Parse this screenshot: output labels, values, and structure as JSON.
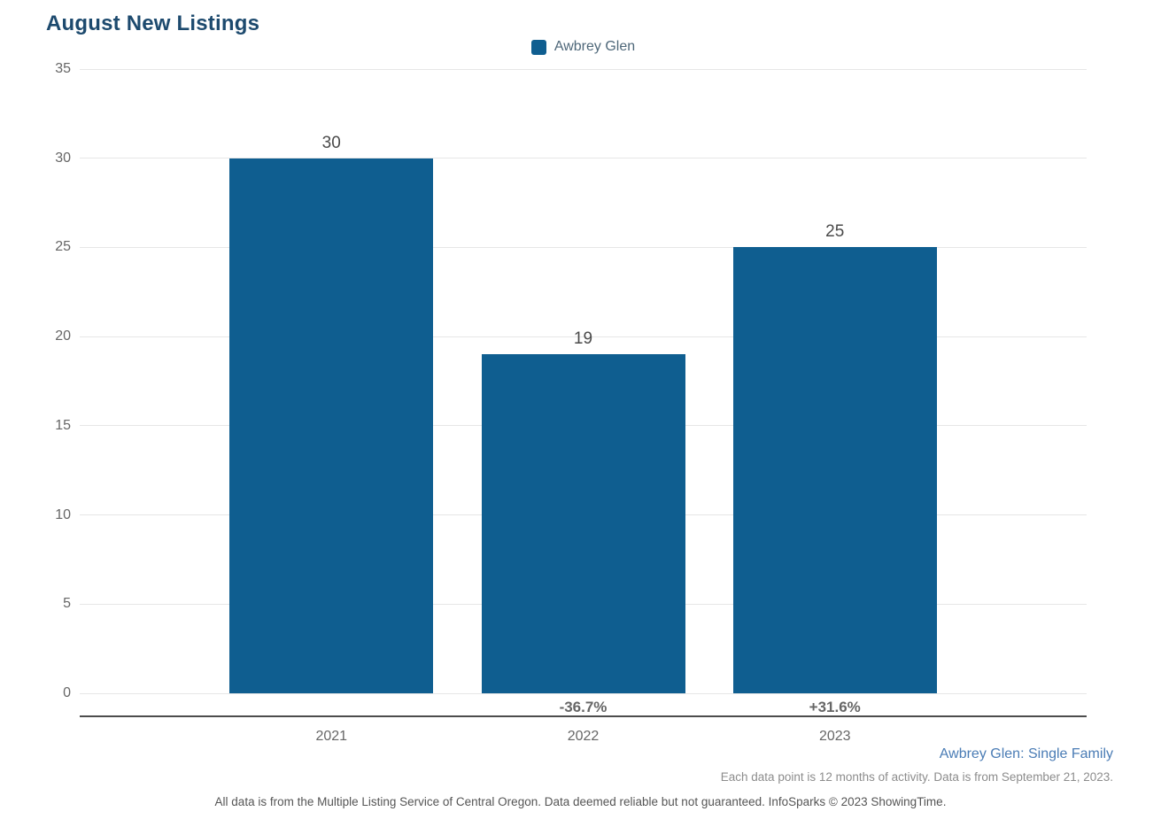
{
  "title": "August New Listings",
  "legend": {
    "label": "Awbrey Glen"
  },
  "chart_data": {
    "type": "bar",
    "title": "August New Listings",
    "categories": [
      "2021",
      "2022",
      "2023"
    ],
    "series": [
      {
        "name": "Awbrey Glen",
        "values": [
          30,
          19,
          25
        ]
      }
    ],
    "value_labels": [
      "30",
      "19",
      "25"
    ],
    "change_labels": [
      "",
      "-36.7%",
      "+31.6%"
    ],
    "yticks": [
      0,
      5,
      10,
      15,
      20,
      25,
      30,
      35
    ],
    "ylim": [
      0,
      35
    ],
    "grid": true,
    "legend_position": "top-center",
    "xlabel": "",
    "ylabel": ""
  },
  "footnotes": {
    "series_caption": "Awbrey Glen: Single Family",
    "data_note": "Each data point is 12 months of activity. Data is from September 21, 2023.",
    "disclaimer": "All data is from the Multiple Listing Service of Central Oregon. Data deemed reliable but not guaranteed. InfoSparks © 2023 ShowingTime."
  },
  "colors": {
    "bar": "#0f5e90",
    "title": "#1d4a6e",
    "legend_text": "#4e6779",
    "series_caption": "#4a7cb5",
    "axis_text": "#666666",
    "value_label": "#4a4a4a",
    "gridline": "#e6e6e6",
    "axis_line": "#4d4d4d"
  }
}
